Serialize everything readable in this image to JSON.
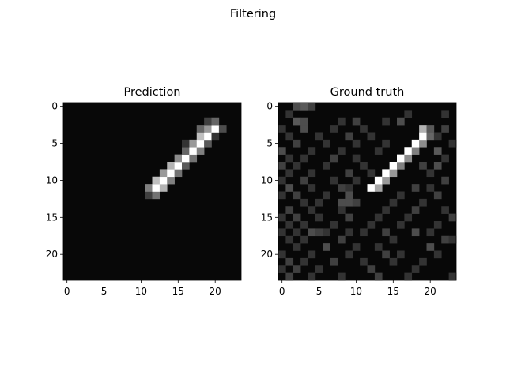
{
  "figure": {
    "suptitle": "Filtering"
  },
  "chart_data": [
    {
      "type": "heatmap",
      "title": "Prediction",
      "colormap": "gray",
      "grid_size": 24,
      "xlim": [
        0,
        23
      ],
      "ylim": [
        23,
        0
      ],
      "xticks": [
        0,
        5,
        10,
        15,
        20
      ],
      "yticks": [
        0,
        5,
        10,
        15,
        20
      ],
      "grid": false,
      "background_value": 0.03,
      "cells": [
        [
          11,
          12,
          0.25
        ],
        [
          12,
          12,
          0.45
        ],
        [
          11,
          11,
          0.5
        ],
        [
          12,
          11,
          1.0
        ],
        [
          13,
          11,
          0.7
        ],
        [
          12,
          10,
          0.75
        ],
        [
          13,
          10,
          1.0
        ],
        [
          14,
          10,
          0.5
        ],
        [
          13,
          9,
          0.6
        ],
        [
          14,
          9,
          1.0
        ],
        [
          15,
          9,
          0.45
        ],
        [
          14,
          8,
          0.7
        ],
        [
          15,
          8,
          1.0
        ],
        [
          16,
          8,
          0.35
        ],
        [
          15,
          7,
          0.55
        ],
        [
          16,
          7,
          1.0
        ],
        [
          17,
          7,
          0.45
        ],
        [
          16,
          6,
          0.4
        ],
        [
          17,
          6,
          1.0
        ],
        [
          18,
          6,
          0.5
        ],
        [
          16,
          5,
          0.2
        ],
        [
          17,
          5,
          0.6
        ],
        [
          18,
          5,
          1.0
        ],
        [
          19,
          5,
          0.35
        ],
        [
          18,
          4,
          0.75
        ],
        [
          19,
          4,
          1.0
        ],
        [
          20,
          4,
          0.2
        ],
        [
          18,
          3,
          0.4
        ],
        [
          19,
          3,
          0.6
        ],
        [
          20,
          3,
          1.0
        ],
        [
          21,
          3,
          0.3
        ],
        [
          19,
          2,
          0.25
        ],
        [
          20,
          2,
          0.4
        ]
      ]
    },
    {
      "type": "heatmap",
      "title": "Ground truth",
      "colormap": "gray",
      "grid_size": 24,
      "xlim": [
        0,
        23
      ],
      "ylim": [
        23,
        0
      ],
      "xticks": [
        0,
        5,
        10,
        15,
        20
      ],
      "yticks": [
        0,
        5,
        10,
        15,
        20
      ],
      "grid": false,
      "background_value": 0.03,
      "cells": [
        [
          12,
          11,
          1.0
        ],
        [
          13,
          11,
          0.65
        ],
        [
          13,
          10,
          1.0
        ],
        [
          14,
          10,
          0.6
        ],
        [
          14,
          9,
          1.0
        ],
        [
          15,
          9,
          0.6
        ],
        [
          15,
          8,
          1.0
        ],
        [
          16,
          8,
          0.5
        ],
        [
          16,
          7,
          1.0
        ],
        [
          17,
          7,
          0.55
        ],
        [
          17,
          6,
          1.0
        ],
        [
          18,
          6,
          0.5
        ],
        [
          18,
          5,
          1.0
        ],
        [
          19,
          5,
          0.55
        ],
        [
          19,
          4,
          1.0
        ],
        [
          20,
          4,
          0.4
        ],
        [
          19,
          3,
          0.7
        ],
        [
          20,
          3,
          0.35
        ],
        [
          2,
          0,
          0.3
        ],
        [
          3,
          0,
          0.35
        ],
        [
          4,
          0,
          0.25
        ],
        [
          1,
          1,
          0.2
        ],
        [
          17,
          1,
          0.2
        ],
        [
          22,
          1,
          0.2
        ],
        [
          2,
          2,
          0.35
        ],
        [
          3,
          2,
          0.3
        ],
        [
          8,
          2,
          0.2
        ],
        [
          10,
          2,
          0.25
        ],
        [
          14,
          2,
          0.2
        ],
        [
          16,
          2,
          0.3
        ],
        [
          0,
          3,
          0.2
        ],
        [
          3,
          3,
          0.3
        ],
        [
          7,
          3,
          0.2
        ],
        [
          11,
          3,
          0.2
        ],
        [
          22,
          3,
          0.25
        ],
        [
          1,
          4,
          0.2
        ],
        [
          5,
          4,
          0.2
        ],
        [
          9,
          4,
          0.25
        ],
        [
          12,
          4,
          0.2
        ],
        [
          21,
          4,
          0.2
        ],
        [
          2,
          5,
          0.25
        ],
        [
          6,
          5,
          0.2
        ],
        [
          10,
          5,
          0.2
        ],
        [
          14,
          5,
          0.2
        ],
        [
          23,
          5,
          0.2
        ],
        [
          0,
          6,
          0.3
        ],
        [
          4,
          6,
          0.2
        ],
        [
          8,
          6,
          0.2
        ],
        [
          13,
          6,
          0.2
        ],
        [
          21,
          6,
          0.35
        ],
        [
          1,
          7,
          0.2
        ],
        [
          3,
          7,
          0.2
        ],
        [
          7,
          7,
          0.25
        ],
        [
          10,
          7,
          0.2
        ],
        [
          22,
          7,
          0.2
        ],
        [
          0,
          8,
          0.25
        ],
        [
          2,
          8,
          0.2
        ],
        [
          6,
          8,
          0.2
        ],
        [
          11,
          8,
          0.2
        ],
        [
          19,
          8,
          0.25
        ],
        [
          21,
          8,
          0.3
        ],
        [
          1,
          9,
          0.2
        ],
        [
          4,
          9,
          0.2
        ],
        [
          9,
          9,
          0.25
        ],
        [
          12,
          9,
          0.2
        ],
        [
          20,
          9,
          0.2
        ],
        [
          0,
          10,
          0.2
        ],
        [
          3,
          10,
          0.25
        ],
        [
          7,
          10,
          0.2
        ],
        [
          10,
          10,
          0.2
        ],
        [
          22,
          10,
          0.25
        ],
        [
          1,
          11,
          0.3
        ],
        [
          4,
          11,
          0.2
        ],
        [
          8,
          11,
          0.25
        ],
        [
          9,
          11,
          0.2
        ],
        [
          18,
          11,
          0.25
        ],
        [
          20,
          11,
          0.2
        ],
        [
          0,
          12,
          0.2
        ],
        [
          2,
          12,
          0.25
        ],
        [
          6,
          12,
          0.2
        ],
        [
          9,
          12,
          0.3
        ],
        [
          16,
          12,
          0.2
        ],
        [
          21,
          12,
          0.25
        ],
        [
          3,
          13,
          0.2
        ],
        [
          5,
          13,
          0.2
        ],
        [
          8,
          13,
          0.3
        ],
        [
          9,
          13,
          0.3
        ],
        [
          10,
          13,
          0.25
        ],
        [
          15,
          13,
          0.2
        ],
        [
          19,
          13,
          0.2
        ],
        [
          1,
          14,
          0.25
        ],
        [
          4,
          14,
          0.2
        ],
        [
          8,
          14,
          0.2
        ],
        [
          14,
          14,
          0.2
        ],
        [
          18,
          14,
          0.25
        ],
        [
          22,
          14,
          0.2
        ],
        [
          0,
          15,
          0.2
        ],
        [
          2,
          15,
          0.25
        ],
        [
          5,
          15,
          0.2
        ],
        [
          9,
          15,
          0.25
        ],
        [
          13,
          15,
          0.2
        ],
        [
          17,
          15,
          0.2
        ],
        [
          23,
          15,
          0.25
        ],
        [
          1,
          16,
          0.2
        ],
        [
          3,
          16,
          0.2
        ],
        [
          7,
          16,
          0.2
        ],
        [
          12,
          16,
          0.2
        ],
        [
          16,
          16,
          0.2
        ],
        [
          21,
          16,
          0.2
        ],
        [
          0,
          17,
          0.2
        ],
        [
          2,
          17,
          0.2
        ],
        [
          4,
          17,
          0.3
        ],
        [
          5,
          17,
          0.25
        ],
        [
          6,
          17,
          0.2
        ],
        [
          9,
          17,
          0.2
        ],
        [
          11,
          17,
          0.2
        ],
        [
          14,
          17,
          0.25
        ],
        [
          18,
          17,
          0.3
        ],
        [
          20,
          17,
          0.2
        ],
        [
          1,
          18,
          0.2
        ],
        [
          3,
          18,
          0.2
        ],
        [
          8,
          18,
          0.25
        ],
        [
          15,
          18,
          0.2
        ],
        [
          22,
          18,
          0.25
        ],
        [
          23,
          18,
          0.2
        ],
        [
          2,
          19,
          0.2
        ],
        [
          6,
          19,
          0.3
        ],
        [
          10,
          19,
          0.2
        ],
        [
          13,
          19,
          0.2
        ],
        [
          20,
          19,
          0.3
        ],
        [
          0,
          20,
          0.2
        ],
        [
          4,
          20,
          0.2
        ],
        [
          9,
          20,
          0.2
        ],
        [
          14,
          20,
          0.25
        ],
        [
          16,
          20,
          0.2
        ],
        [
          21,
          20,
          0.2
        ],
        [
          1,
          21,
          0.25
        ],
        [
          3,
          21,
          0.2
        ],
        [
          7,
          21,
          0.25
        ],
        [
          11,
          21,
          0.2
        ],
        [
          15,
          21,
          0.2
        ],
        [
          19,
          21,
          0.2
        ],
        [
          0,
          22,
          0.2
        ],
        [
          2,
          22,
          0.25
        ],
        [
          5,
          22,
          0.2
        ],
        [
          12,
          22,
          0.25
        ],
        [
          18,
          22,
          0.2
        ],
        [
          1,
          23,
          0.25
        ],
        [
          4,
          23,
          0.2
        ],
        [
          8,
          23,
          0.2
        ],
        [
          13,
          23,
          0.25
        ],
        [
          17,
          23,
          0.2
        ],
        [
          23,
          23,
          0.2
        ]
      ]
    }
  ]
}
